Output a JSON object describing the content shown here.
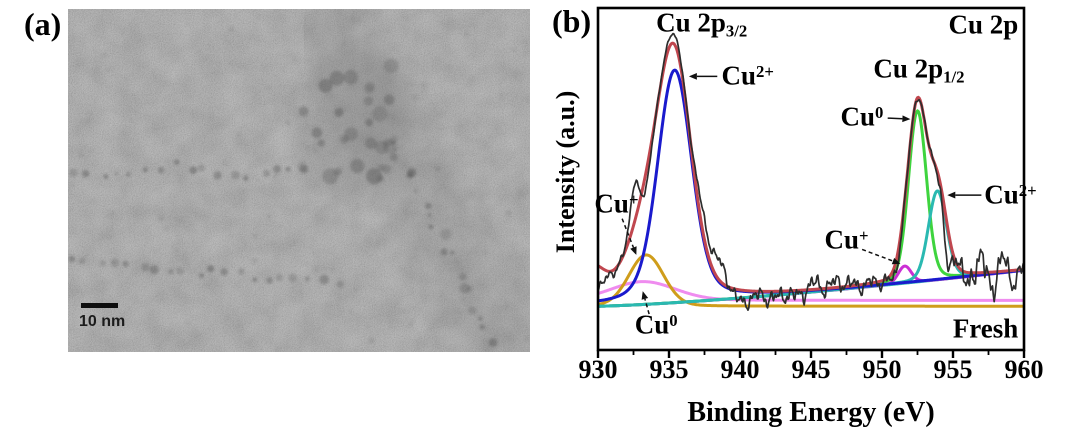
{
  "figure": {
    "background": "#ffffff"
  },
  "panel_a": {
    "label": "(a)",
    "scale_bar": {
      "text": "10 nm"
    }
  },
  "panel_b": {
    "label": "(b)",
    "chart_data": {
      "type": "line",
      "subtype": "XPS Cu 2p spectrum with fitted components",
      "region_label": "Cu 2p",
      "sample_label": "Fresh",
      "xlabel": "Binding Energy (eV)",
      "ylabel": "Intensity (a.u.)",
      "x_range": [
        930,
        960
      ],
      "x_ticks": [
        930,
        935,
        940,
        945,
        950,
        955,
        960
      ],
      "x_minor_tick_step": 2.5,
      "y_range_au": [
        0,
        100
      ],
      "background_line": {
        "name": "background",
        "color": "#38c2b4",
        "start_au": 12.8,
        "end_au": 23.3,
        "curve_power": 1.35
      },
      "components": [
        {
          "name": "Cu2+ 2p3/2",
          "color": "#1a1acd",
          "center_ev": 935.4,
          "height_au": 68,
          "sigma_ev": 1.15,
          "lorentz": 0.22,
          "baseline": "background",
          "z": 6
        },
        {
          "name": "Cu+ 2p3/2",
          "color": "#cf9d1b",
          "center_ev": 933.4,
          "height_au": 15,
          "sigma_ev": 1.2,
          "lorentz": 0.08,
          "baseline": "flat",
          "flat_au": 12.8,
          "z": 2
        },
        {
          "name": "Cu0 2p3/2",
          "color": "#ef8cef",
          "center_ev": 933.2,
          "height_au": 5.5,
          "sigma_ev": 2.2,
          "lorentz": 0.1,
          "baseline": "flat",
          "flat_au": 14.5,
          "z": 1
        },
        {
          "name": "Cu0 2p1/2",
          "color": "#3ed43e",
          "center_ev": 952.5,
          "height_au": 50,
          "sigma_ev": 0.62,
          "lorentz": 0.12,
          "baseline": "background",
          "z": 4
        },
        {
          "name": "Cu2+ 2p1/2",
          "color": "#2ab9b1",
          "center_ev": 953.9,
          "height_au": 26,
          "sigma_ev": 0.62,
          "lorentz": 0.12,
          "baseline": "background",
          "z": 5
        },
        {
          "name": "Cu+ 2p1/2",
          "color": "#cb2fd4",
          "center_ev": 951.6,
          "height_au": 5,
          "sigma_ev": 0.45,
          "lorentz": 0.1,
          "baseline": "background",
          "z": 3
        }
      ],
      "envelope": {
        "name": "fit envelope",
        "color": "#c0474f",
        "edge_component": {
          "center_ev": 929.5,
          "height_au": 9,
          "sigma_ev": 0.9
        }
      },
      "raw": {
        "name": "measured spectrum",
        "color": "#2d2d2d",
        "noise": {
          "terms": [
            {
              "amp": 1.1,
              "freq": 4.7,
              "phase": 1.3
            },
            {
              "amp": 0.85,
              "freq": 9.4,
              "phase": 4.2
            },
            {
              "amp": 0.6,
              "freq": 17.3,
              "phase": 0.7
            },
            {
              "amp": 0.45,
              "freq": 29.1,
              "phase": 2.5
            }
          ],
          "boost": [
            {
              "center": 956.9,
              "sigma": 1.9,
              "amp": 1.5
            },
            {
              "center": 944,
              "sigma": 5,
              "amp": 0.5
            }
          ],
          "damp_scale": 25
        },
        "features": [
          {
            "center": 930.0,
            "amp": -6,
            "sigma": 0.45
          },
          {
            "center": 932.55,
            "amp": 12,
            "sigma": 0.28
          },
          {
            "center": 933.35,
            "amp": -5,
            "sigma": 0.28
          },
          {
            "center": 935.25,
            "amp": 3,
            "sigma": 0.5
          },
          {
            "center": 937.35,
            "amp": 5.2,
            "sigma": 0.5
          },
          {
            "center": 938.55,
            "amp": 5,
            "sigma": 0.55
          },
          {
            "center": 939.9,
            "amp": -3.5,
            "sigma": 0.4
          },
          {
            "center": 940.9,
            "amp": -2,
            "sigma": 0.5
          },
          {
            "center": 942.4,
            "amp": -2.5,
            "sigma": 0.4
          },
          {
            "center": 943.9,
            "amp": -2,
            "sigma": 0.35
          },
          {
            "center": 945.3,
            "amp": 1.5,
            "sigma": 0.4
          },
          {
            "center": 947.0,
            "amp": 1.8,
            "sigma": 0.4
          },
          {
            "center": 950.9,
            "amp": -3,
            "sigma": 0.3
          },
          {
            "center": 954.6,
            "amp": -12,
            "sigma": 0.25
          },
          {
            "center": 955.3,
            "amp": 4,
            "sigma": 0.25
          },
          {
            "center": 956.0,
            "amp": -5,
            "sigma": 0.3
          },
          {
            "center": 956.8,
            "amp": 5,
            "sigma": 0.3
          },
          {
            "center": 957.7,
            "amp": -4,
            "sigma": 0.3
          },
          {
            "center": 958.5,
            "amp": 3.5,
            "sigma": 0.3
          },
          {
            "center": 959.2,
            "amp": -3,
            "sigma": 0.3
          }
        ]
      },
      "annotations": [
        {
          "id": "cu2p32",
          "text": "Cu 2p",
          "sub": "3/2",
          "x_ev": 937.3,
          "y_au": 95,
          "align": "center"
        },
        {
          "id": "cu2p-region",
          "text": "Cu 2p",
          "x_ev": 959.6,
          "y_au": 95,
          "align": "right"
        },
        {
          "id": "cu2plus-2p32",
          "text": "Cu",
          "sup": "2+",
          "x_ev": 938.7,
          "y_au": 80,
          "align": "left",
          "arrow": {
            "x1": 938.4,
            "y1": 80,
            "x2": 936.4,
            "y2": 80,
            "dashed": false
          }
        },
        {
          "id": "cu2p12",
          "text": "Cu 2p",
          "sub": "1/2",
          "x_ev": 952.6,
          "y_au": 81.5,
          "align": "center"
        },
        {
          "id": "cu0-2p12",
          "text": "Cu",
          "sup": "0",
          "x_ev": 950.1,
          "y_au": 68,
          "align": "right",
          "arrow": {
            "x1": 950.4,
            "y1": 67.8,
            "x2": 952.0,
            "y2": 67.5,
            "dashed": false
          }
        },
        {
          "id": "cu2plus-2p12",
          "text": "Cu",
          "sup": "2+",
          "x_ev": 957.2,
          "y_au": 45.3,
          "align": "left",
          "arrow": {
            "x1": 957.0,
            "y1": 45.3,
            "x2": 954.6,
            "y2": 45.3,
            "dashed": false
          }
        },
        {
          "id": "cuplus-2p12",
          "text": "Cu",
          "sup": "+",
          "x_ev": 947.5,
          "y_au": 32.3,
          "align": "center",
          "arrow": {
            "x1": 948.6,
            "y1": 29.4,
            "x2": 951.3,
            "y2": 25.2,
            "dashed": true
          }
        },
        {
          "id": "cuplus-2p32",
          "text": "Cu",
          "sup": "+",
          "x_ev": 931.3,
          "y_au": 42.7,
          "align": "center",
          "arrow": {
            "x1": 931.7,
            "y1": 38.4,
            "x2": 932.7,
            "y2": 27.8,
            "dashed": true
          }
        },
        {
          "id": "cu0-2p32",
          "text": "Cu",
          "sup": "0",
          "x_ev": 934.1,
          "y_au": 7.3,
          "align": "center",
          "arrow": {
            "x1": 933.6,
            "y1": 10.5,
            "x2": 933.15,
            "y2": 17.2,
            "dashed": true
          }
        },
        {
          "id": "sample-state",
          "text": "Fresh",
          "x_ev": 959.6,
          "y_au": 6.2,
          "align": "right"
        }
      ]
    }
  }
}
